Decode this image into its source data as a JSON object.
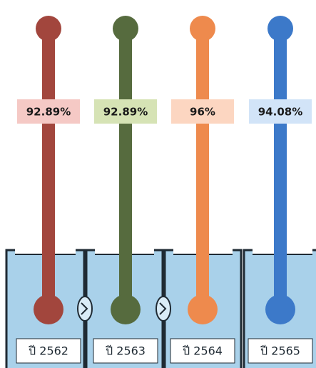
{
  "columns": [
    {
      "label": "92.89%",
      "year": "ปี 2562",
      "color": "#a2463d",
      "label_bg": "#f5c9c5"
    },
    {
      "label": "92.89%",
      "year": "ปี 2563",
      "color": "#566b3e",
      "label_bg": "#d6e3b5"
    },
    {
      "label": "96%",
      "year": "ปี 2564",
      "color": "#ee8a4d",
      "label_bg": "#fcd6c1"
    },
    {
      "label": "94.08%",
      "year": "ปี 2565",
      "color": "#3c79c9",
      "label_bg": "#d2e4f8"
    }
  ]
}
